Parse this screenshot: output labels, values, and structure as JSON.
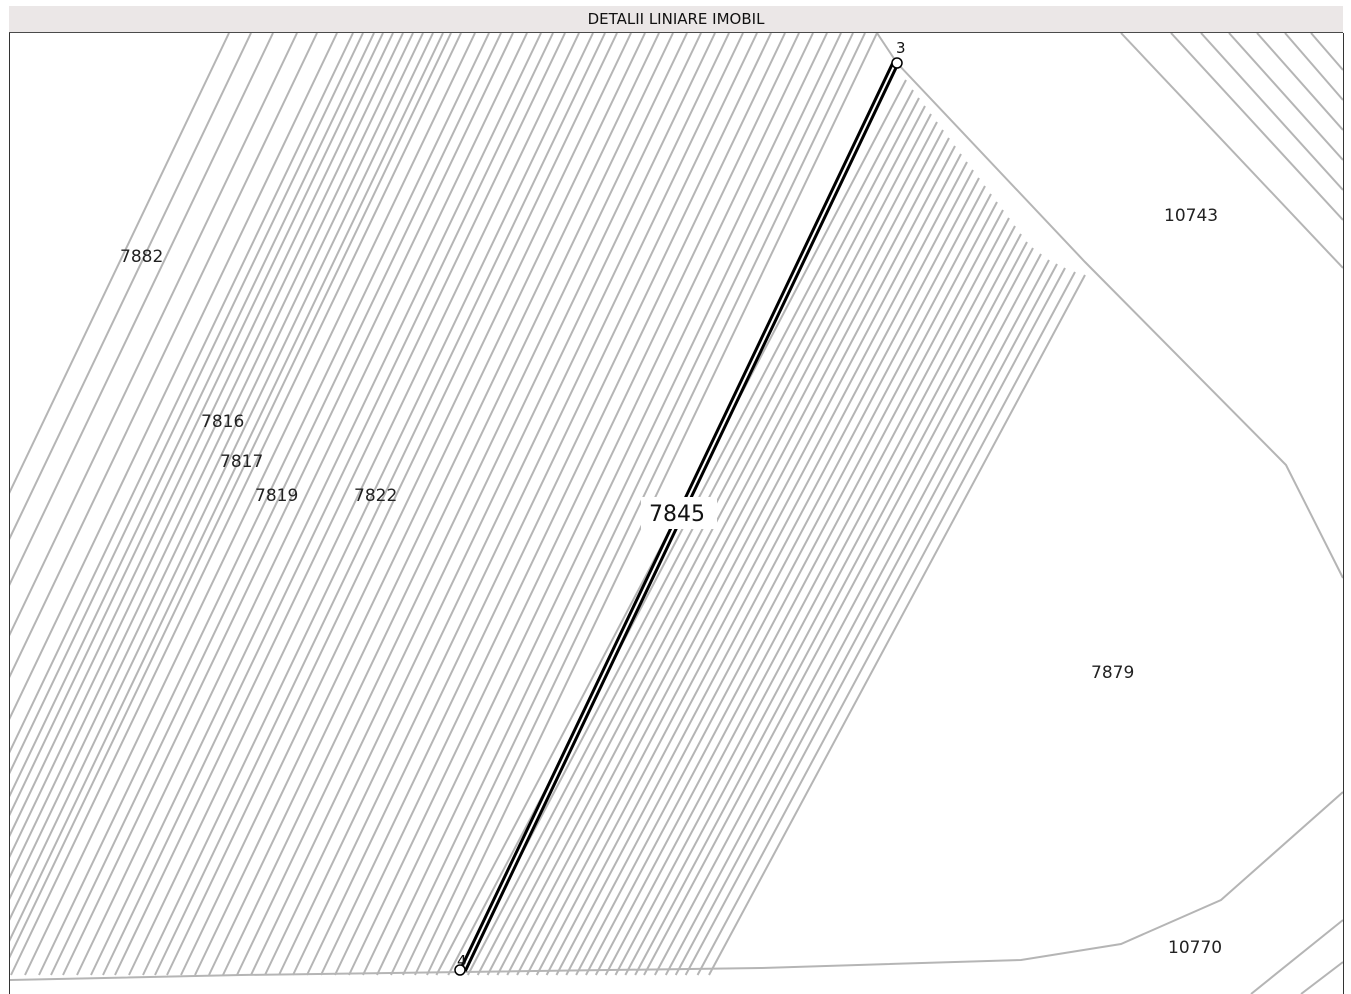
{
  "header": {
    "title": "DETALII LINIARE IMOBIL"
  },
  "parcels": {
    "p7882": "7882",
    "p7816": "7816",
    "p7817": "7817",
    "p7819": "7819",
    "p7822": "7822",
    "p7845": "7845",
    "p10743": "10743",
    "p7879": "7879",
    "p10770": "10770"
  },
  "vertices": {
    "top": "3",
    "bottom": "4"
  },
  "colors": {
    "boundary": "#b5b5b5",
    "highlight": "#000000"
  }
}
